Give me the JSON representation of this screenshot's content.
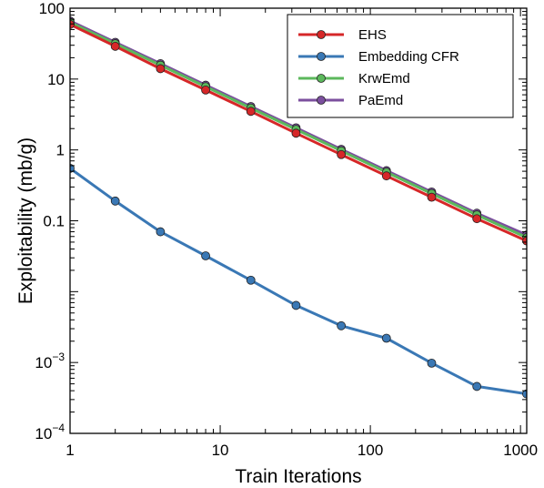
{
  "chart_data": {
    "type": "line",
    "title": "",
    "xlabel": "Train Iterations",
    "ylabel": "Exploitability (mb/g)",
    "xscale": "log",
    "yscale": "log",
    "xlim": [
      1,
      1100
    ],
    "ylim": [
      0.0001,
      100
    ],
    "grid": false,
    "legend_position": "top-right",
    "x_ticks": [
      {
        "value": 1,
        "label": "1"
      },
      {
        "value": 10,
        "label": "10"
      },
      {
        "value": 100,
        "label": "100"
      },
      {
        "value": 1000,
        "label": "1000"
      }
    ],
    "y_ticks": [
      {
        "value": 0.0001,
        "label": "10",
        "exp": "−4"
      },
      {
        "value": 0.001,
        "label": "10",
        "exp": "−3"
      },
      {
        "value": 0.01,
        "label": "",
        "exp": ""
      },
      {
        "value": 0.1,
        "label": "0.1",
        "exp": ""
      },
      {
        "value": 1,
        "label": "1",
        "exp": ""
      },
      {
        "value": 10,
        "label": "10",
        "exp": ""
      },
      {
        "value": 100,
        "label": "100",
        "exp": ""
      }
    ],
    "x": [
      1,
      2,
      4,
      8,
      16,
      32,
      64,
      128,
      256,
      512,
      1100
    ],
    "series": [
      {
        "name": "PaEmd",
        "color": "#7b4f9e",
        "values": [
          66,
          33,
          16.5,
          8.2,
          4.1,
          2.05,
          1.02,
          0.51,
          0.255,
          0.128,
          0.063
        ]
      },
      {
        "name": "KrwEmd",
        "color": "#5cb85c",
        "values": [
          63,
          31.5,
          15.7,
          7.8,
          3.9,
          1.95,
          0.97,
          0.485,
          0.242,
          0.121,
          0.058
        ]
      },
      {
        "name": "EHS",
        "color": "#d62728",
        "values": [
          59,
          29,
          14,
          7.0,
          3.5,
          1.72,
          0.86,
          0.43,
          0.215,
          0.107,
          0.052
        ]
      },
      {
        "name": "Embedding CFR",
        "color": "#3a78b5",
        "values": [
          0.55,
          0.19,
          0.07,
          0.032,
          0.0145,
          0.0064,
          0.0033,
          0.0022,
          0.00098,
          0.00046,
          0.00036
        ]
      }
    ],
    "legend": [
      "EHS",
      "Embedding CFR",
      "KrwEmd",
      "PaEmd"
    ]
  }
}
